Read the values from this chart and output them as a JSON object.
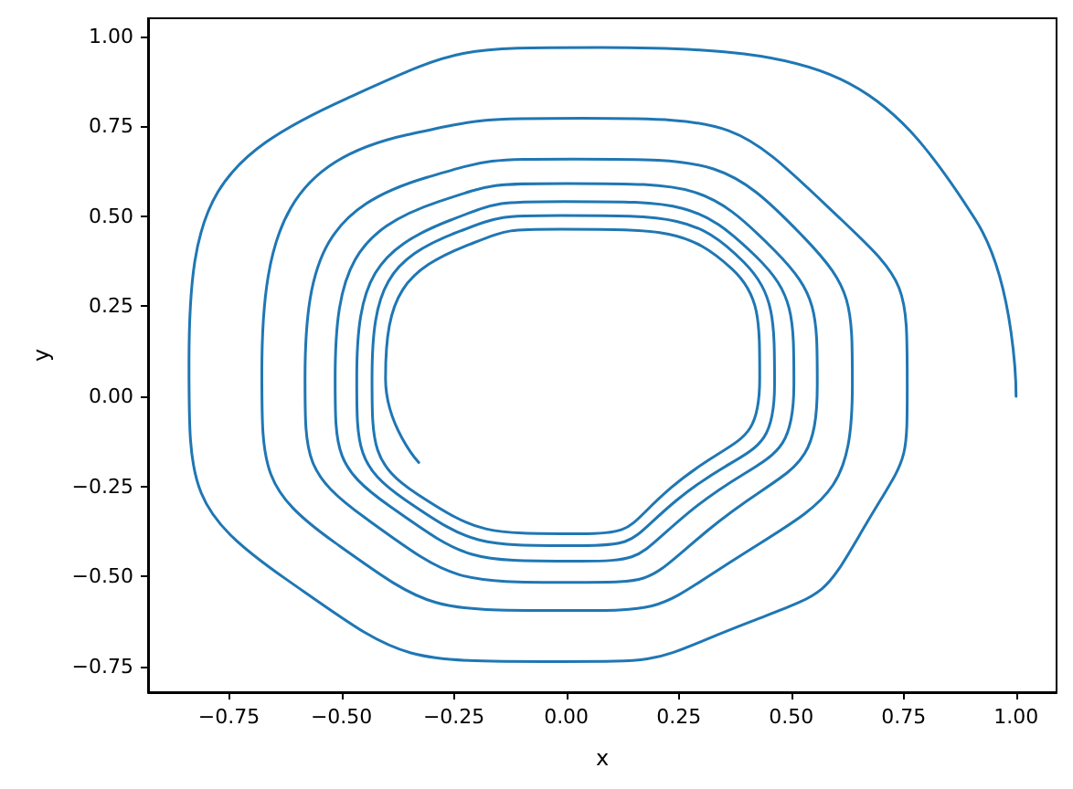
{
  "chart_data": {
    "type": "line",
    "xlabel": "x",
    "ylabel": "y",
    "xlim": [
      -0.93,
      1.09
    ],
    "ylim": [
      -0.822,
      1.05
    ],
    "xticks": [
      {
        "value": -0.75,
        "label": "−0.75"
      },
      {
        "value": -0.5,
        "label": "−0.50"
      },
      {
        "value": -0.25,
        "label": "−0.25"
      },
      {
        "value": 0,
        "label": "0.00"
      },
      {
        "value": 0.25,
        "label": "0.25"
      },
      {
        "value": 0.5,
        "label": "0.50"
      },
      {
        "value": 0.75,
        "label": "0.75"
      },
      {
        "value": 1,
        "label": "1.00"
      }
    ],
    "yticks": [
      {
        "value": -0.75,
        "label": "−0.75"
      },
      {
        "value": -0.5,
        "label": "−0.50"
      },
      {
        "value": -0.25,
        "label": "−0.25"
      },
      {
        "value": 0,
        "label": "0.00"
      },
      {
        "value": 0.25,
        "label": "0.25"
      },
      {
        "value": 0.5,
        "label": "0.50"
      },
      {
        "value": 0.75,
        "label": "0.75"
      },
      {
        "value": 1,
        "label": "1.00"
      }
    ],
    "grid": false,
    "marker": "none",
    "line_style": "solid",
    "series": [
      {
        "color": "#1f77b4",
        "x": [
          1.0,
          0.91,
          0.076,
          -0.487,
          -0.839,
          -0.622,
          -0.012,
          0.408,
          0.666,
          0.758,
          0.612,
          0.035,
          -0.351,
          -0.677,
          -0.514,
          0.0,
          0.368,
          0.636,
          0.53,
          0.015,
          -0.31,
          -0.581,
          -0.446,
          0.029,
          0.314,
          0.558,
          0.463,
          0.002,
          -0.283,
          -0.514,
          -0.392,
          0.029,
          0.273,
          0.506,
          0.422,
          -0.005,
          -0.256,
          -0.466,
          -0.358,
          0.029,
          0.246,
          0.463,
          0.395,
          -0.012,
          -0.242,
          -0.432,
          -0.331,
          0.029,
          0.232,
          0.43,
          0.368,
          -0.012,
          -0.215,
          -0.402,
          -0.328
        ],
        "values": [
          0.0,
          0.49,
          0.969,
          0.828,
          0.092,
          -0.509,
          -0.737,
          -0.627,
          -0.356,
          0.033,
          0.49,
          0.772,
          0.727,
          0.067,
          -0.407,
          -0.595,
          -0.458,
          0.033,
          0.439,
          0.659,
          0.608,
          0.05,
          -0.339,
          -0.517,
          -0.373,
          0.033,
          0.405,
          0.591,
          0.541,
          0.05,
          -0.306,
          -0.458,
          -0.322,
          0.033,
          0.388,
          0.541,
          0.49,
          0.05,
          -0.288,
          -0.415,
          -0.288,
          0.033,
          0.372,
          0.502,
          0.456,
          0.05,
          -0.272,
          -0.382,
          -0.255,
          0.05,
          0.354,
          0.464,
          0.422,
          0.05,
          -0.184
        ]
      }
    ]
  }
}
